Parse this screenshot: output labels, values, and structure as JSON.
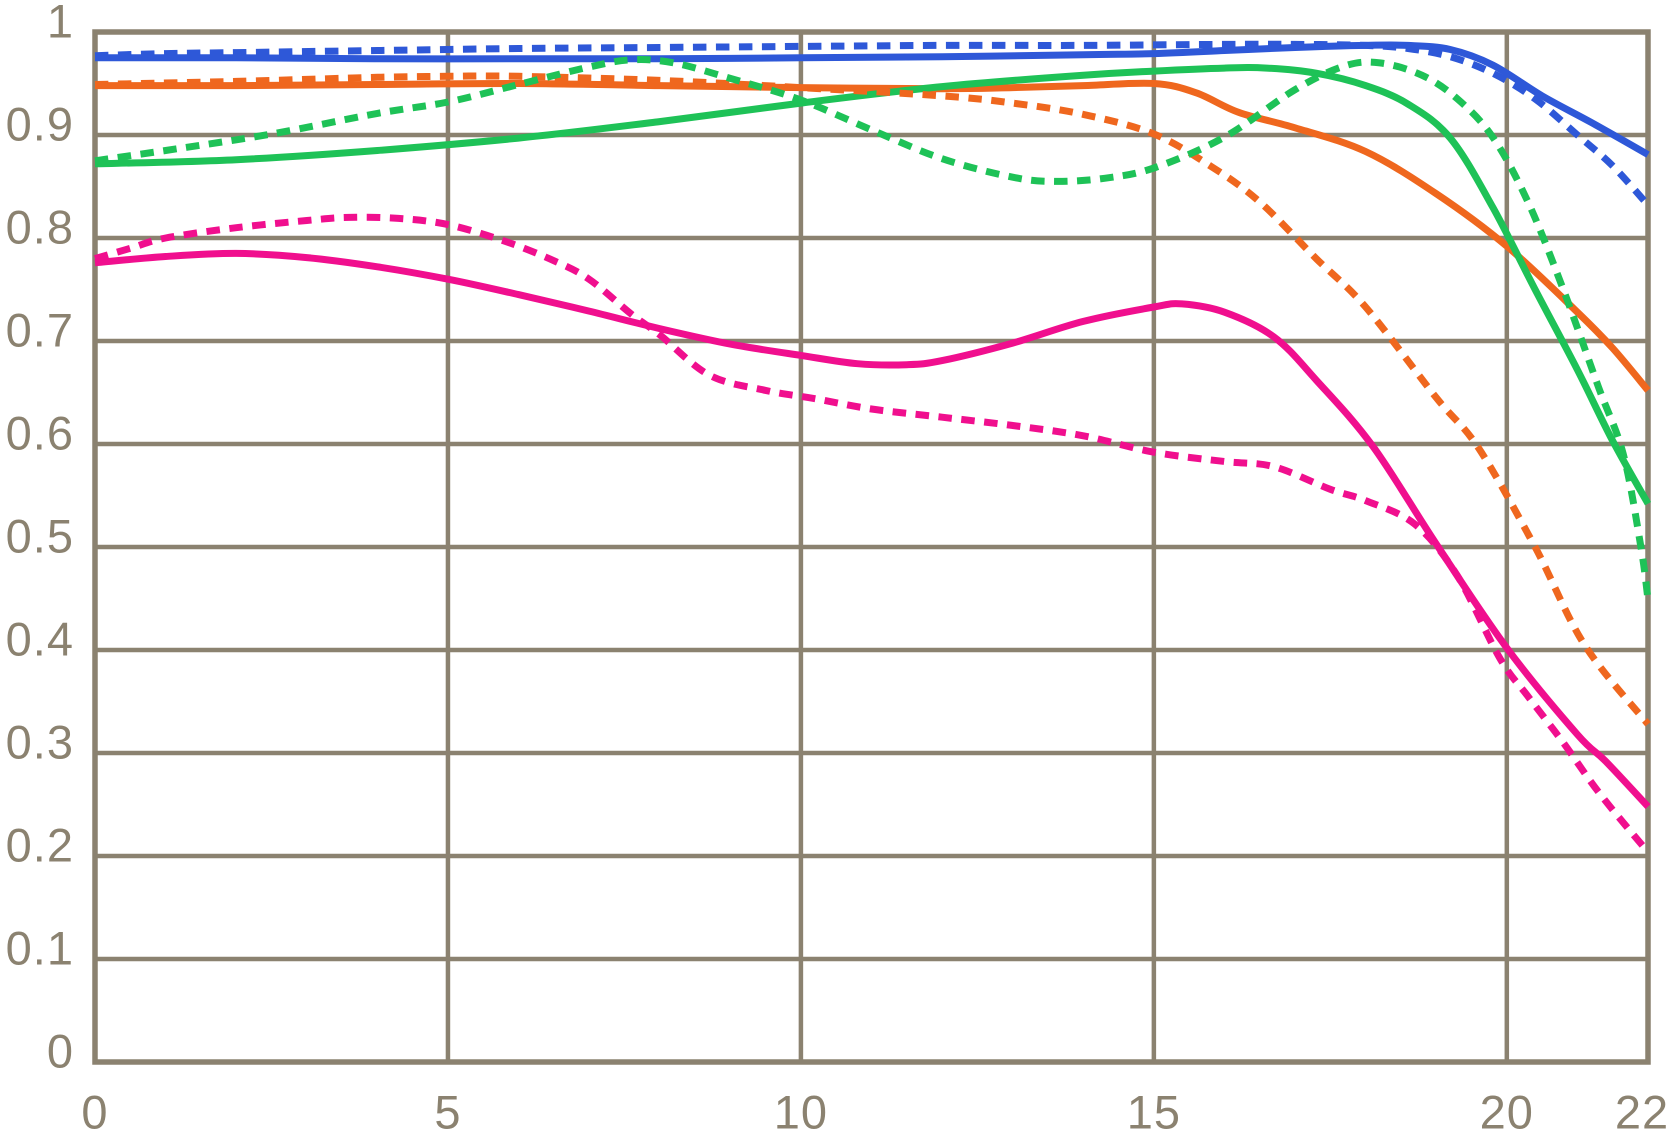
{
  "chart_data": {
    "type": "line",
    "xlim": [
      0,
      22
    ],
    "ylim": [
      0,
      1
    ],
    "x_ticks": [
      0,
      5,
      10,
      15,
      20,
      22
    ],
    "x_tick_labels": [
      "0",
      "5",
      "10",
      "15",
      "20",
      "22"
    ],
    "y_ticks": [
      0,
      0.1,
      0.2,
      0.3,
      0.4,
      0.5,
      0.6,
      0.7,
      0.8,
      0.9,
      1
    ],
    "y_tick_labels": [
      "0",
      "0.1",
      "0.2",
      "0.3",
      "0.4",
      "0.5",
      "0.6",
      "0.7",
      "0.8",
      "0.9",
      "1"
    ],
    "grid": true,
    "legend_position": "none",
    "colors": {
      "grid": "#8B8270",
      "tick_labels": "#8B8270",
      "background": "#FFFFFF",
      "blue": "#2E58D8",
      "orange": "#EF671E",
      "green": "#1EC257",
      "magenta": "#F00F8E"
    },
    "series": [
      {
        "name": "orange-solid",
        "color_key": "orange",
        "style": "solid",
        "x": [
          0,
          2,
          4,
          6,
          8,
          10,
          12,
          13,
          14,
          15,
          15.6,
          16.2,
          17,
          18,
          19,
          20,
          21,
          21.5,
          22
        ],
        "y": [
          0.948,
          0.948,
          0.949,
          0.95,
          0.948,
          0.946,
          0.945,
          0.946,
          0.948,
          0.95,
          0.941,
          0.922,
          0.907,
          0.884,
          0.843,
          0.792,
          0.728,
          0.693,
          0.652
        ]
      },
      {
        "name": "green-solid",
        "color_key": "green",
        "style": "solid",
        "x": [
          0,
          2,
          4,
          6,
          8,
          10,
          12,
          14,
          15,
          16,
          16.6,
          17.3,
          18,
          18.6,
          19.2,
          19.8,
          20.4,
          21,
          21.5,
          22
        ],
        "y": [
          0.872,
          0.876,
          0.885,
          0.897,
          0.913,
          0.931,
          0.947,
          0.958,
          0.962,
          0.965,
          0.965,
          0.96,
          0.948,
          0.93,
          0.897,
          0.83,
          0.75,
          0.672,
          0.603,
          0.542
        ]
      },
      {
        "name": "blue-solid",
        "color_key": "blue",
        "style": "solid",
        "x": [
          0,
          2,
          4,
          6,
          8,
          10,
          12,
          14,
          15,
          16,
          17,
          18,
          18.6,
          19.2,
          19.8,
          20.5,
          21.2,
          22
        ],
        "y": [
          0.975,
          0.975,
          0.974,
          0.974,
          0.974,
          0.975,
          0.976,
          0.978,
          0.979,
          0.982,
          0.985,
          0.987,
          0.987,
          0.983,
          0.968,
          0.938,
          0.912,
          0.881
        ]
      },
      {
        "name": "magenta-solid",
        "color_key": "magenta",
        "style": "solid",
        "x": [
          0,
          1,
          2,
          3,
          4,
          5,
          6,
          7,
          8,
          9,
          10,
          10.8,
          11.5,
          12,
          13,
          14,
          15,
          15.4,
          16,
          16.7,
          17.3,
          18.1,
          19,
          20,
          21,
          21.4,
          22
        ],
        "y": [
          0.776,
          0.782,
          0.785,
          0.781,
          0.772,
          0.76,
          0.745,
          0.729,
          0.712,
          0.697,
          0.686,
          0.678,
          0.677,
          0.681,
          0.698,
          0.719,
          0.733,
          0.736,
          0.728,
          0.704,
          0.662,
          0.598,
          0.503,
          0.402,
          0.318,
          0.292,
          0.248
        ]
      },
      {
        "name": "orange-dashed",
        "color_key": "orange",
        "style": "dashed",
        "x": [
          0,
          2,
          4,
          5,
          6,
          8,
          10,
          12,
          13,
          14,
          15,
          15.8,
          16.5,
          17.3,
          18,
          19,
          19.6,
          20.4,
          21.1,
          22
        ],
        "y": [
          0.949,
          0.952,
          0.956,
          0.957,
          0.957,
          0.953,
          0.946,
          0.938,
          0.931,
          0.92,
          0.901,
          0.87,
          0.835,
          0.78,
          0.733,
          0.645,
          0.596,
          0.5,
          0.405,
          0.328
        ]
      },
      {
        "name": "green-dashed",
        "color_key": "green",
        "style": "dashed",
        "x": [
          0,
          1,
          2.5,
          4,
          5,
          6,
          7,
          7.6,
          8.2,
          9,
          10,
          11,
          12,
          13,
          13.6,
          14.3,
          15,
          16,
          17,
          17.7,
          18.2,
          18.8,
          19.3,
          19.8,
          20.3,
          20.8,
          21.3,
          21.65,
          21.9,
          22
        ],
        "y": [
          0.875,
          0.885,
          0.901,
          0.921,
          0.932,
          0.949,
          0.966,
          0.973,
          0.97,
          0.955,
          0.934,
          0.905,
          0.877,
          0.859,
          0.855,
          0.858,
          0.868,
          0.898,
          0.944,
          0.967,
          0.97,
          0.958,
          0.935,
          0.898,
          0.835,
          0.75,
          0.655,
          0.59,
          0.5,
          0.449
        ]
      },
      {
        "name": "blue-dashed",
        "color_key": "blue",
        "style": "dashed",
        "x": [
          0,
          1,
          2,
          4,
          6,
          8,
          10,
          12,
          14,
          16,
          17,
          18,
          18.6,
          19.2,
          19.8,
          20.4,
          21,
          21.5,
          22
        ],
        "y": [
          0.977,
          0.979,
          0.98,
          0.982,
          0.984,
          0.985,
          0.986,
          0.987,
          0.987,
          0.988,
          0.988,
          0.987,
          0.984,
          0.976,
          0.96,
          0.935,
          0.9,
          0.87,
          0.832
        ]
      },
      {
        "name": "magenta-dashed",
        "color_key": "magenta",
        "style": "dashed",
        "x": [
          0,
          0.5,
          1,
          2,
          3,
          3.6,
          4.3,
          5,
          5.8,
          6.5,
          7,
          7.6,
          8,
          8.7,
          9.5,
          10.2,
          11,
          12,
          13,
          14,
          15,
          16,
          16.7,
          17.5,
          18,
          18.7,
          19.3,
          19.9,
          20.3,
          20.8,
          21.3,
          21.9,
          22
        ],
        "y": [
          0.78,
          0.79,
          0.8,
          0.81,
          0.817,
          0.82,
          0.819,
          0.813,
          0.797,
          0.778,
          0.76,
          0.726,
          0.706,
          0.667,
          0.652,
          0.644,
          0.634,
          0.626,
          0.618,
          0.608,
          0.592,
          0.583,
          0.578,
          0.556,
          0.545,
          0.522,
          0.472,
          0.392,
          0.355,
          0.31,
          0.262,
          0.212,
          0.205
        ]
      }
    ]
  }
}
